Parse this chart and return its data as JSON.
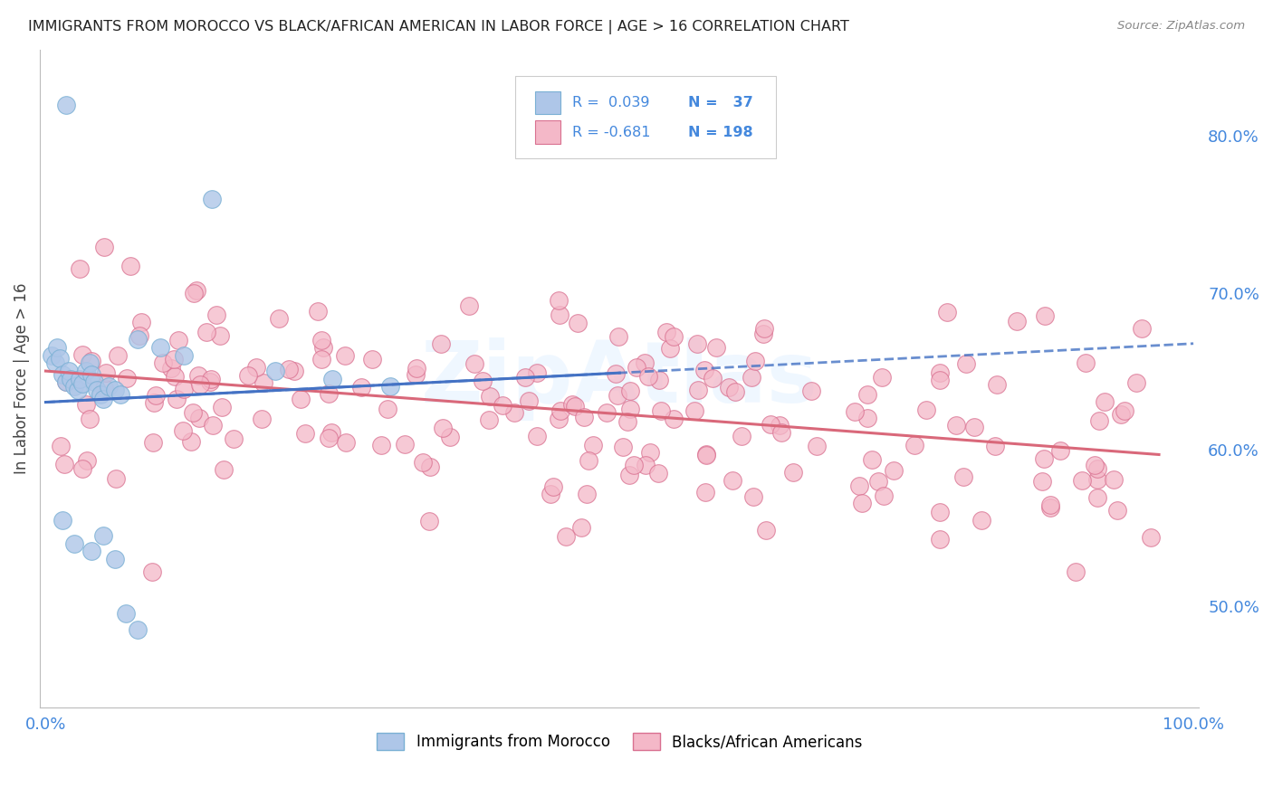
{
  "title": "IMMIGRANTS FROM MOROCCO VS BLACK/AFRICAN AMERICAN IN LABOR FORCE | AGE > 16 CORRELATION CHART",
  "source": "Source: ZipAtlas.com",
  "ylabel": "In Labor Force | Age > 16",
  "background_color": "#ffffff",
  "grid_color": "#cccccc",
  "morocco_color": "#aec6e8",
  "morocco_edge": "#7ab0d4",
  "black_color": "#f4b8c8",
  "black_edge": "#d97090",
  "morocco_line_color": "#4472c4",
  "black_line_color": "#d9687a",
  "yticks": [
    0.5,
    0.6,
    0.7,
    0.8
  ],
  "ytick_labels": [
    "50.0%",
    "60.0%",
    "70.0%",
    "80.0%"
  ],
  "xtick_labels_show": [
    "0.0%",
    "100.0%"
  ],
  "watermark": "ZipAtlas",
  "figsize": [
    14.06,
    8.92
  ],
  "dpi": 100
}
